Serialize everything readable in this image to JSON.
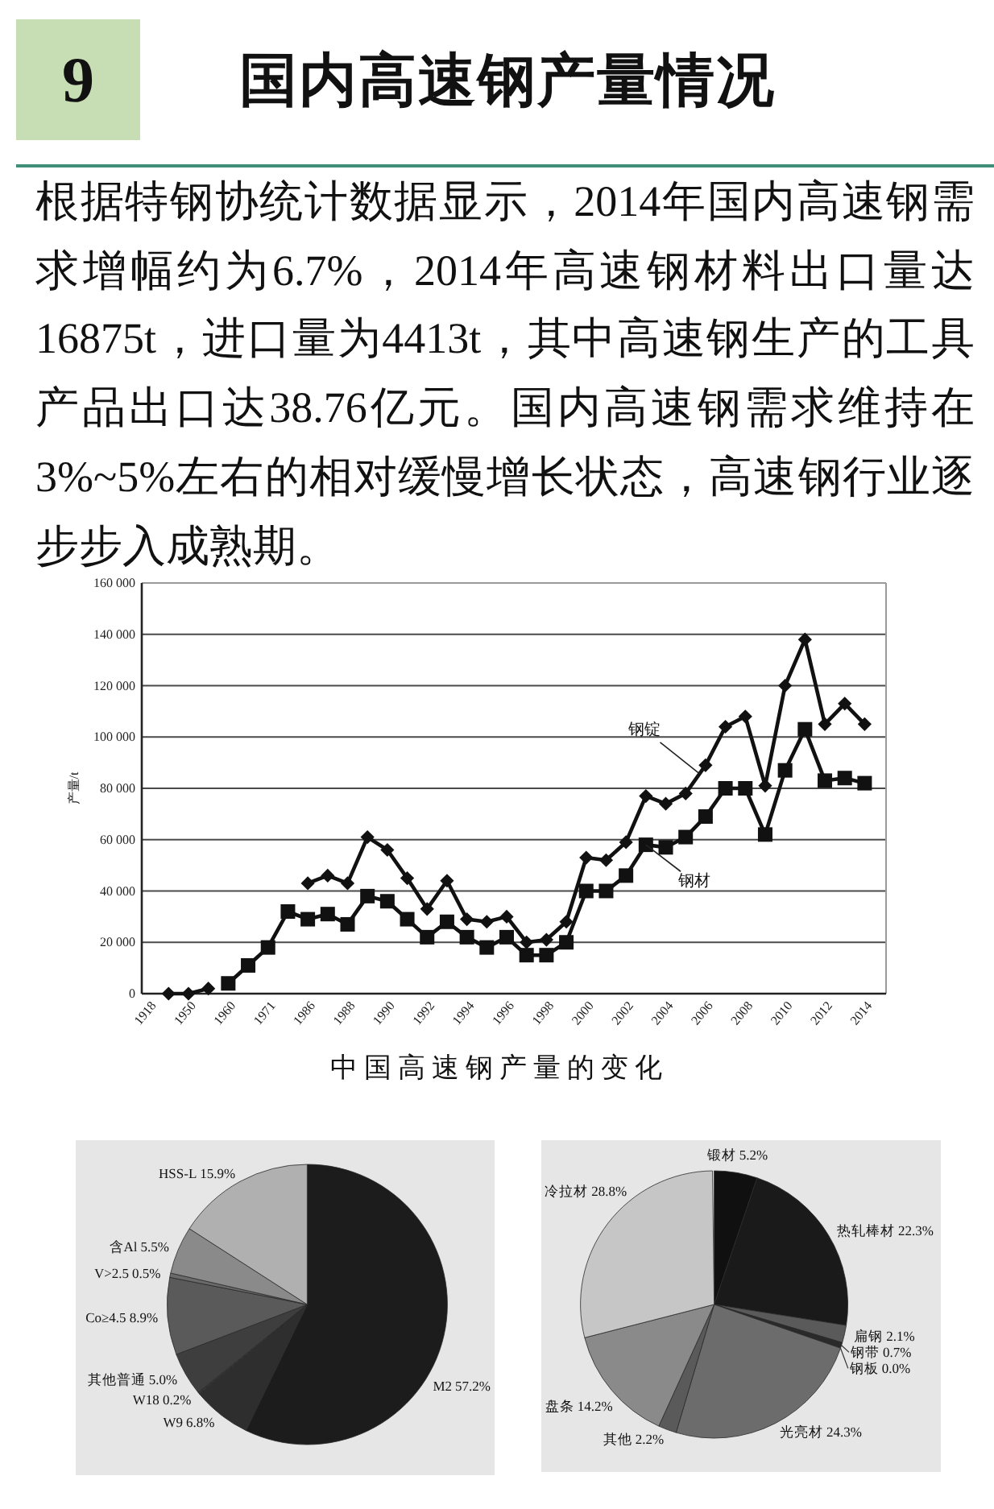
{
  "chart_data": [
    {
      "type": "other",
      "title": "国内高速钢产量情况",
      "annotations": [
        "9",
        "根据特钢协统计数据显示，2014年国内高速钢需求增幅约为6.7%，2014年高速钢材料出口量达16875t，进口量为4413t，其中高速钢生产的工具产品出口达38.76亿元。国内高速钢需求维持在3%~5%左右的相对缓慢增长状态，高速钢行业逐步步入成熟期。"
      ]
    },
    {
      "type": "line",
      "title": "中国高速钢产量的变化",
      "ylabel": "产量/t",
      "categories": [
        "1918",
        null,
        "1950",
        null,
        "1960",
        null,
        "1971",
        null,
        "1986",
        null,
        "1988",
        null,
        "1990",
        null,
        "1992",
        null,
        "1994",
        null,
        "1996",
        null,
        "1998",
        null,
        "2000",
        null,
        "2002",
        null,
        "2004",
        null,
        "2006",
        null,
        "2008",
        null,
        "2010",
        null,
        "2012",
        null,
        "2014"
      ],
      "ylim": [
        0,
        160000
      ],
      "yticks": [
        0,
        {
          "value": 20000,
          "label": "20 000"
        },
        {
          "value": 40000,
          "label": "40 000"
        },
        {
          "value": 60000,
          "label": "60 000"
        },
        {
          "value": 80000,
          "label": "80 000"
        },
        {
          "value": 100000,
          "label": "100 000"
        },
        {
          "value": 120000,
          "label": "120 000"
        },
        {
          "value": 140000,
          "label": "140 000"
        },
        {
          "value": 160000,
          "label": "160 000"
        }
      ],
      "grid": "y",
      "series": [
        {
          "name": "钢锭",
          "color": "#111111",
          "marker": "diamond",
          "values": [
            null,
            0,
            0,
            2000,
            null,
            null,
            null,
            null,
            43000,
            46000,
            43000,
            61000,
            56000,
            45000,
            33000,
            44000,
            29000,
            28000,
            30000,
            20000,
            21000,
            28000,
            53000,
            52000,
            59000,
            77000,
            74000,
            78000,
            89000,
            104000,
            108000,
            81000,
            120000,
            138000,
            105000,
            113000,
            105000
          ]
        },
        {
          "name": "钢材",
          "color": "#111111",
          "marker": "square",
          "values": [
            null,
            null,
            null,
            null,
            4000,
            11000,
            18000,
            32000,
            29000,
            31000,
            27000,
            38000,
            36000,
            29000,
            22000,
            28000,
            22000,
            18000,
            22000,
            15000,
            15000,
            20000,
            40000,
            40000,
            46000,
            58000,
            57000,
            61000,
            69000,
            80000,
            80000,
            62000,
            87000,
            103000,
            83000,
            84000,
            82000
          ]
        }
      ]
    },
    {
      "type": "pie",
      "categories": [
        "M2",
        "W9",
        "W18",
        "其他普通",
        "Co≥4.5",
        "V>2.5",
        "含Al",
        "HSS-L"
      ],
      "values": [
        57.2,
        6.8,
        0.2,
        5.0,
        8.9,
        0.5,
        5.5,
        15.9
      ],
      "value_labels": [
        "57.2%",
        "6.8%",
        "0.2%",
        "5.0%",
        "8.9%",
        "0.5%",
        "5.5%",
        "15.9%"
      ],
      "colors": [
        "#1c1c1c",
        "#2e2e2e",
        "#363636",
        "#3e3e3e",
        "#5a5a5a",
        "#6a6a6a",
        "#8a8a8a",
        "#b0b0b0"
      ]
    },
    {
      "type": "pie",
      "categories": [
        "锻材",
        "热轧棒材",
        "扁钢",
        "钢带",
        "钢板",
        "光亮材",
        "其他",
        "盘条",
        "冷拉材"
      ],
      "values": [
        5.2,
        22.3,
        2.1,
        0.7,
        0.0,
        24.3,
        2.2,
        14.2,
        28.8
      ],
      "value_labels": [
        "5.2%",
        "22.3%",
        "2.1%",
        "0.7%",
        "0.0%",
        "24.3%",
        "2.2%",
        "14.2%",
        "28.8%"
      ],
      "colors": [
        "#101010",
        "#1a1a1a",
        "#5a5a5a",
        "#2a2a2a",
        null,
        "#6c6c6c",
        "#5a5a5a",
        "#8a8a8a",
        "#c6c6c6"
      ]
    }
  ]
}
